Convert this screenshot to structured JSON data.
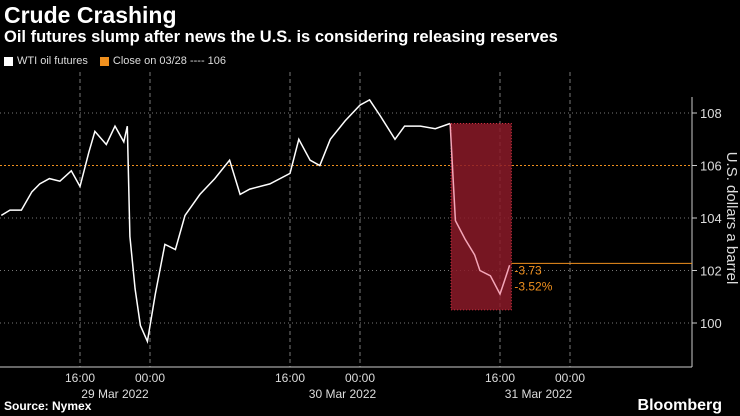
{
  "header": {
    "title": "Crude Crashing",
    "subtitle": "Oil futures slump after news the U.S. is considering releasing reserves"
  },
  "legend": {
    "series": "WTI oil futures",
    "reference": "Close on 03/28 ---- 106"
  },
  "footer": {
    "source": "Source: Nymex",
    "brand": "Bloomberg"
  },
  "colors": {
    "line": "#ffffff",
    "reference": "#f0901e",
    "box": "#8b1a28",
    "box_line": "#f4a6b8"
  },
  "chart_data": {
    "type": "line",
    "title": "Crude Crashing",
    "ylabel": "U.S. dollars a barrel",
    "ylim": [
      99,
      109.3
    ],
    "yticks": [
      100,
      102,
      104,
      106,
      108
    ],
    "xlim_hours": [
      6.9,
      85.7
    ],
    "xticks": [
      {
        "hour": 16,
        "label": "16:00"
      },
      {
        "hour": 24,
        "label": "00:00"
      },
      {
        "hour": 40,
        "label": "16:00"
      },
      {
        "hour": 48,
        "label": "00:00"
      },
      {
        "hour": 64,
        "label": "16:00"
      },
      {
        "hour": 72,
        "label": "00:00"
      }
    ],
    "date_labels": [
      {
        "hour": 20,
        "label": "29 Mar 2022"
      },
      {
        "hour": 46,
        "label": "30 Mar 2022"
      },
      {
        "hour": 68.4,
        "label": "31 Mar 2022"
      }
    ],
    "series": [
      {
        "name": "WTI oil futures",
        "x": [
          7,
          8,
          9.3,
          10.5,
          11.4,
          12.5,
          13.7,
          15,
          16,
          17,
          17.7,
          19,
          20,
          21,
          21.4,
          21.7,
          22.3,
          22.9,
          23.7,
          24.6,
          25.7,
          26.9,
          28,
          29.7,
          31.4,
          33.1,
          34.3,
          35.4,
          37.7,
          40,
          41,
          42.3,
          43.4,
          44.6,
          46.3,
          48,
          49.1,
          50.3,
          52,
          53.1,
          54.9,
          56.6,
          58.3,
          58.9,
          60,
          61.1,
          61.7,
          62.9,
          64,
          64.6,
          65.1
        ],
        "y": [
          104.1,
          104.3,
          104.3,
          105,
          105.3,
          105.5,
          105.4,
          105.8,
          105.2,
          106.5,
          107.3,
          106.8,
          107.5,
          106.9,
          107.5,
          103.3,
          101.3,
          99.9,
          99.3,
          101.1,
          103,
          102.8,
          104.1,
          104.9,
          105.5,
          106.2,
          104.9,
          105.1,
          105.3,
          105.7,
          107,
          106.2,
          106,
          107,
          107.7,
          108.3,
          108.5,
          107.9,
          107,
          107.5,
          107.5,
          107.4,
          107.6,
          103.9,
          103.2,
          102.6,
          102,
          101.8,
          101.1,
          101.7,
          102.2
        ]
      }
    ],
    "reference_line": {
      "label": "Close on 03/28",
      "value": 106
    },
    "highlight": {
      "x_from": 58.4,
      "x_to": 65.3,
      "y_from": 100.5,
      "y_to": 107.6,
      "last_value": 102.27
    },
    "annotations": [
      "-3.73",
      "-3.52%"
    ]
  }
}
